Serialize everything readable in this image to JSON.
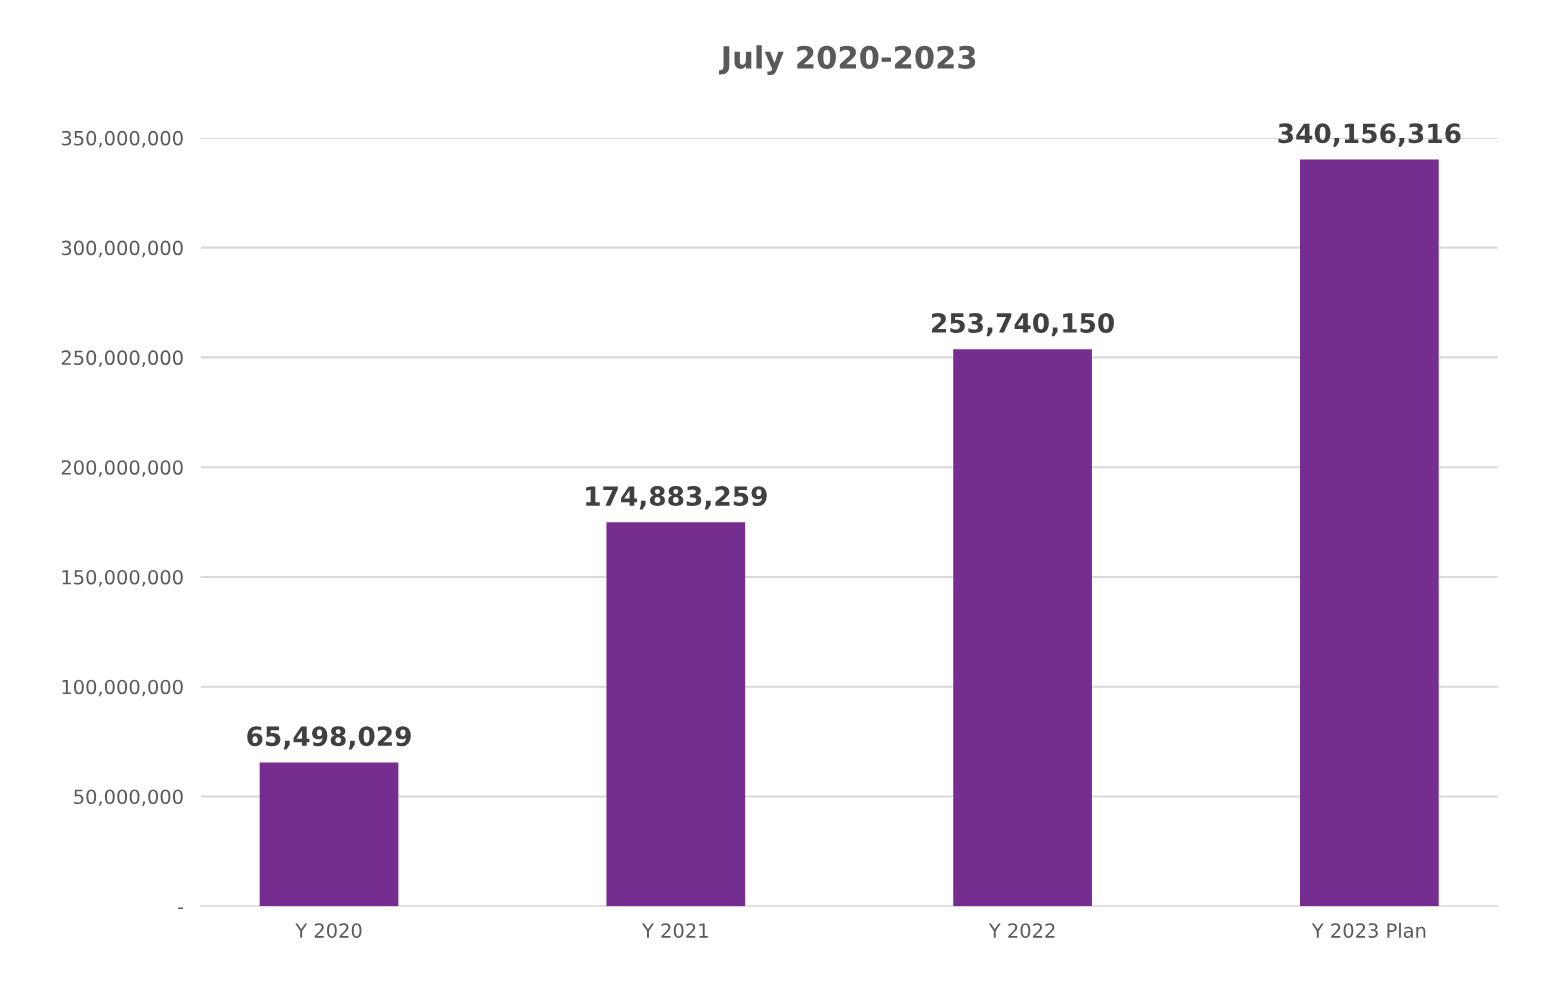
{
  "chart_data": {
    "type": "bar",
    "title": "July 2020-2023",
    "categories": [
      "Y 2020",
      "Y 2021",
      "Y 2022",
      "Y 2023 Plan"
    ],
    "values": [
      65498029,
      174883259,
      253740150,
      340156316
    ],
    "value_labels": [
      "65,498,029",
      "174,883,259",
      "253,740,150",
      "340,156,316"
    ],
    "color": "#752d8f",
    "ylim": [
      0,
      350000000
    ],
    "yticks": [
      {
        "value": 0,
        "label": "-"
      },
      {
        "value": 50000000,
        "label": "50,000,000"
      },
      {
        "value": 100000000,
        "label": "100,000,000"
      },
      {
        "value": 150000000,
        "label": "150,000,000"
      },
      {
        "value": 200000000,
        "label": "200,000,000"
      },
      {
        "value": 250000000,
        "label": "250,000,000"
      },
      {
        "value": 300000000,
        "label": "300,000,000"
      },
      {
        "value": 350000000,
        "label": "350,000,000"
      }
    ],
    "grid": "y"
  }
}
